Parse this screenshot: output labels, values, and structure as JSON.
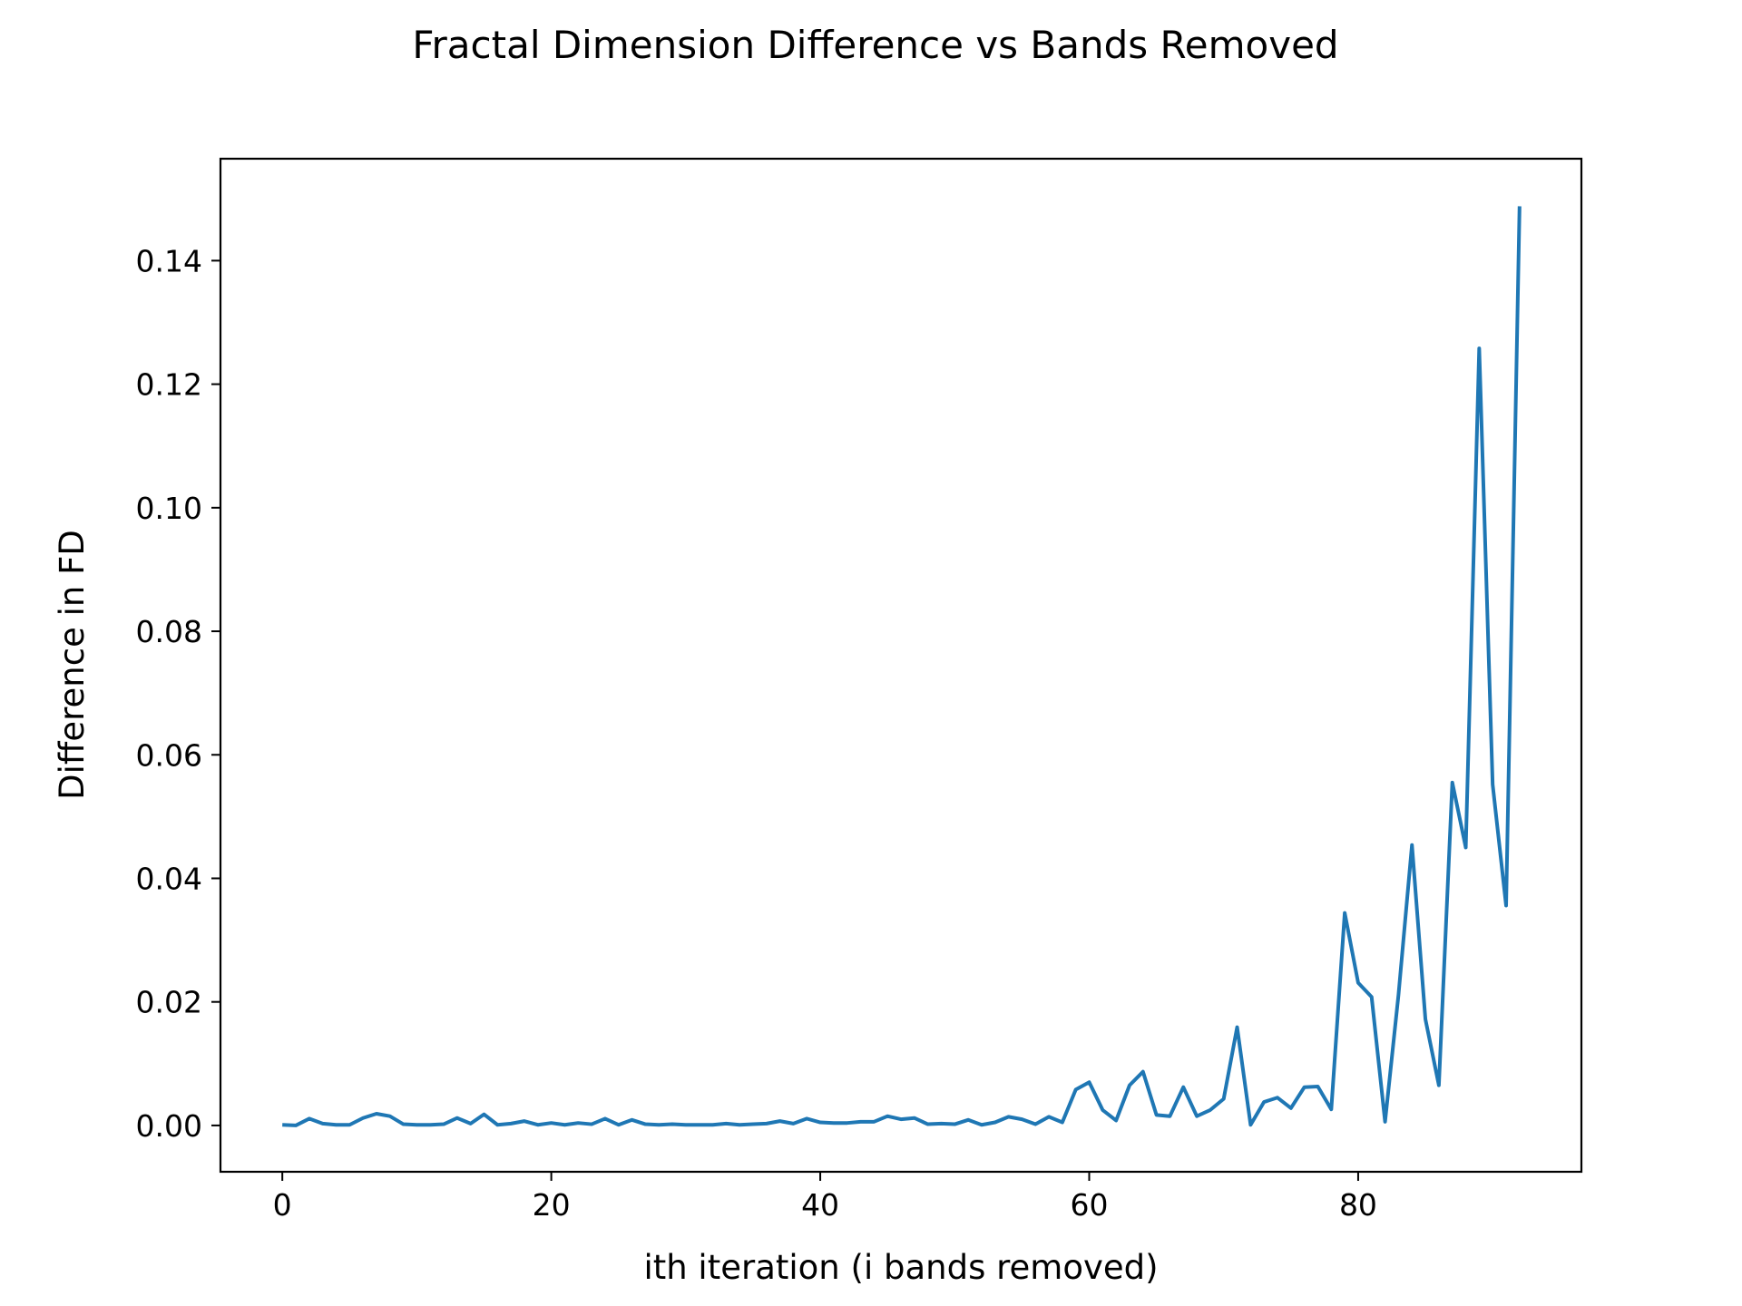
{
  "chart_data": {
    "type": "line",
    "title": "Fractal Dimension Difference vs Bands Removed",
    "xlabel": "ith iteration (i bands removed)",
    "ylabel": "Difference in FD",
    "xlim": [
      -4.6,
      96.6
    ],
    "ylim": [
      -0.0075,
      0.1565
    ],
    "xticks": [
      0,
      20,
      40,
      60,
      80
    ],
    "xtick_labels": [
      "0",
      "20",
      "40",
      "60",
      "80"
    ],
    "yticks": [
      0.0,
      0.02,
      0.04,
      0.06,
      0.08,
      0.1,
      0.12,
      0.14
    ],
    "ytick_labels": [
      "0.00",
      "0.02",
      "0.04",
      "0.06",
      "0.08",
      "0.10",
      "0.12",
      "0.14"
    ],
    "grid": false,
    "series": [
      {
        "color": "#1f77b4",
        "x": [
          0,
          1,
          2,
          3,
          4,
          5,
          6,
          7,
          8,
          9,
          10,
          11,
          12,
          13,
          14,
          15,
          16,
          17,
          18,
          19,
          20,
          21,
          22,
          23,
          24,
          25,
          26,
          27,
          28,
          29,
          30,
          31,
          32,
          33,
          34,
          35,
          36,
          37,
          38,
          39,
          40,
          41,
          42,
          43,
          44,
          45,
          46,
          47,
          48,
          49,
          50,
          51,
          52,
          53,
          54,
          55,
          56,
          57,
          58,
          59,
          60,
          61,
          62,
          63,
          64,
          65,
          66,
          67,
          68,
          69,
          70,
          71,
          72,
          73,
          74,
          75,
          76,
          77,
          78,
          79,
          80,
          81,
          82,
          83,
          84,
          85,
          86,
          87,
          88,
          89,
          90,
          91,
          92
        ],
        "y": [
          0.0001,
          0.0,
          0.0011,
          0.0003,
          0.0001,
          0.0001,
          0.0012,
          0.0019,
          0.0015,
          0.0002,
          0.0001,
          0.0001,
          0.0002,
          0.0012,
          0.0003,
          0.0018,
          0.0001,
          0.0003,
          0.0007,
          0.0001,
          0.0004,
          0.0001,
          0.0004,
          0.0002,
          0.0011,
          0.0001,
          0.0009,
          0.0002,
          0.0001,
          0.0002,
          0.0001,
          0.0001,
          0.0001,
          0.0003,
          0.0001,
          0.0002,
          0.0003,
          0.0007,
          0.0003,
          0.0011,
          0.0005,
          0.0004,
          0.0004,
          0.0006,
          0.0006,
          0.0015,
          0.001,
          0.0012,
          0.0002,
          0.0003,
          0.0002,
          0.0009,
          0.0001,
          0.0005,
          0.0014,
          0.001,
          0.0002,
          0.0014,
          0.0005,
          0.0058,
          0.007,
          0.0025,
          0.0008,
          0.0065,
          0.0087,
          0.0017,
          0.0015,
          0.0062,
          0.0015,
          0.0025,
          0.0043,
          0.0159,
          0.0001,
          0.0038,
          0.0045,
          0.0028,
          0.0062,
          0.0063,
          0.0026,
          0.0344,
          0.0231,
          0.0208,
          0.0006,
          0.0212,
          0.0454,
          0.0172,
          0.0065,
          0.0555,
          0.045,
          0.1258,
          0.0552,
          0.0356,
          0.1488
        ]
      }
    ]
  }
}
